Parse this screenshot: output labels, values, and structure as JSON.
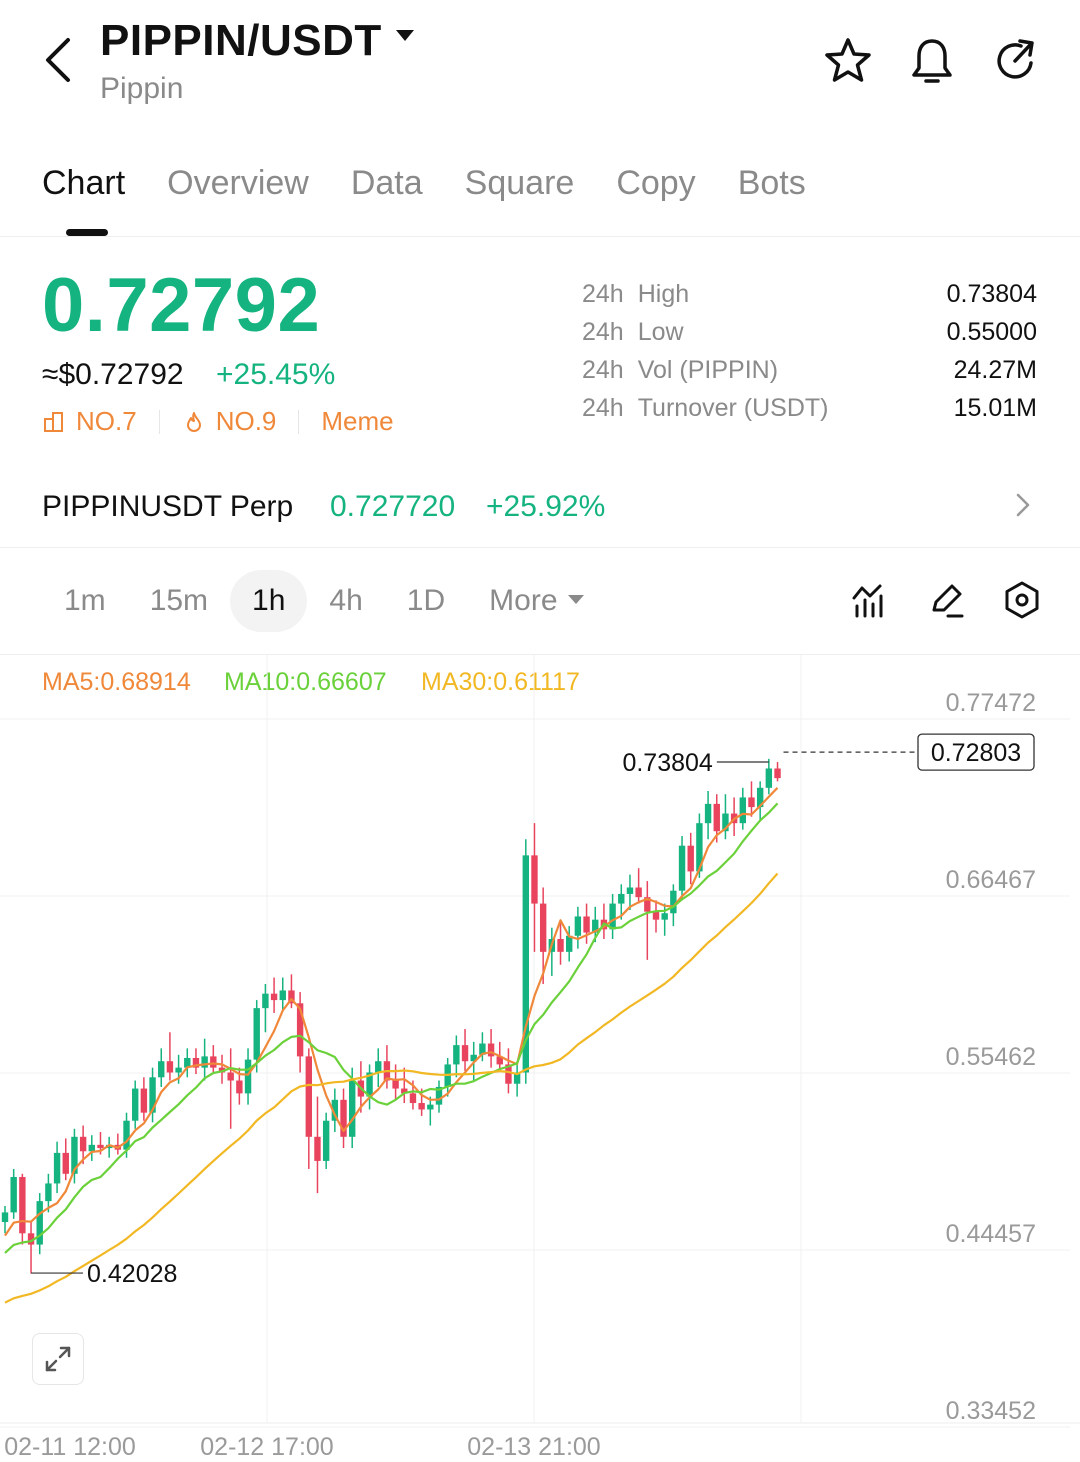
{
  "header": {
    "pair": "PIPPIN/USDT",
    "name": "Pippin"
  },
  "tabs": [
    "Chart",
    "Overview",
    "Data",
    "Square",
    "Copy",
    "Bots"
  ],
  "price": {
    "last": "0.72792",
    "usd": "≈$0.72792",
    "change": "+25.45%",
    "tags": [
      "NO.7",
      "NO.9",
      "Meme"
    ]
  },
  "stats": [
    {
      "label_a": "24h",
      "label_b": "High",
      "value": "0.73804"
    },
    {
      "label_a": "24h",
      "label_b": "Low",
      "value": "0.55000"
    },
    {
      "label_a": "24h",
      "label_b": "Vol (PIPPIN)",
      "value": "24.27M"
    },
    {
      "label_a": "24h",
      "label_b": "Turnover (USDT)",
      "value": "15.01M"
    }
  ],
  "perp": {
    "name": "PIPPINUSDT Perp",
    "price": "0.727720",
    "change": "+25.92%"
  },
  "intervals": [
    "1m",
    "15m",
    "1h",
    "4h",
    "1D",
    "More"
  ],
  "active_interval": "1h",
  "ma": {
    "ma5": "MA5:0.68914",
    "ma10": "MA10:0.66607",
    "ma30": "MA30:0.61117"
  },
  "colors": {
    "up": "#15b37f",
    "down": "#e8445e",
    "ma5": "#f0883a",
    "ma10": "#6ad13a",
    "ma30": "#f2b824",
    "tag": "#f0883a"
  },
  "chart_data": {
    "type": "candlestick",
    "y_ticks": [
      "0.77472",
      "0.66467",
      "0.55462",
      "0.44457",
      "0.33452"
    ],
    "y_tick_values": [
      0.77472,
      0.66467,
      0.55462,
      0.44457,
      0.33452
    ],
    "x_ticks": [
      "02-11 12:00",
      "02-12 17:00",
      "02-13 21:00"
    ],
    "high_label": "0.73804",
    "low_label": "0.42028",
    "last_label": "0.72803",
    "high": 0.73804,
    "low": 0.42028,
    "last": 0.72803,
    "grid": true,
    "candles": [
      [
        0.452,
        0.462,
        0.445,
        0.458
      ],
      [
        0.458,
        0.485,
        0.454,
        0.48
      ],
      [
        0.48,
        0.482,
        0.438,
        0.445
      ],
      [
        0.445,
        0.452,
        0.42,
        0.438
      ],
      [
        0.438,
        0.47,
        0.432,
        0.465
      ],
      [
        0.465,
        0.482,
        0.458,
        0.476
      ],
      [
        0.476,
        0.502,
        0.47,
        0.495
      ],
      [
        0.495,
        0.504,
        0.478,
        0.482
      ],
      [
        0.482,
        0.51,
        0.476,
        0.505
      ],
      [
        0.505,
        0.512,
        0.488,
        0.496
      ],
      [
        0.496,
        0.506,
        0.49,
        0.5
      ],
      [
        0.5,
        0.508,
        0.494,
        0.498
      ],
      [
        0.498,
        0.505,
        0.492,
        0.5
      ],
      [
        0.5,
        0.507,
        0.494,
        0.497
      ],
      [
        0.497,
        0.52,
        0.492,
        0.515
      ],
      [
        0.515,
        0.54,
        0.51,
        0.535
      ],
      [
        0.535,
        0.542,
        0.515,
        0.52
      ],
      [
        0.52,
        0.548,
        0.514,
        0.542
      ],
      [
        0.542,
        0.56,
        0.536,
        0.552
      ],
      [
        0.552,
        0.57,
        0.54,
        0.545
      ],
      [
        0.545,
        0.556,
        0.538,
        0.548
      ],
      [
        0.548,
        0.56,
        0.542,
        0.554
      ],
      [
        0.554,
        0.56,
        0.544,
        0.548
      ],
      [
        0.548,
        0.566,
        0.54,
        0.555
      ],
      [
        0.555,
        0.562,
        0.544,
        0.548
      ],
      [
        0.548,
        0.556,
        0.538,
        0.545
      ],
      [
        0.545,
        0.56,
        0.51,
        0.54
      ],
      [
        0.54,
        0.548,
        0.525,
        0.532
      ],
      [
        0.532,
        0.56,
        0.525,
        0.553
      ],
      [
        0.553,
        0.59,
        0.545,
        0.585
      ],
      [
        0.585,
        0.6,
        0.57,
        0.594
      ],
      [
        0.594,
        0.604,
        0.582,
        0.59
      ],
      [
        0.59,
        0.604,
        0.584,
        0.596
      ],
      [
        0.596,
        0.606,
        0.585,
        0.588
      ],
      [
        0.588,
        0.595,
        0.545,
        0.555
      ],
      [
        0.555,
        0.56,
        0.485,
        0.505
      ],
      [
        0.505,
        0.53,
        0.47,
        0.49
      ],
      [
        0.49,
        0.52,
        0.485,
        0.515
      ],
      [
        0.515,
        0.535,
        0.508,
        0.528
      ],
      [
        0.528,
        0.535,
        0.498,
        0.505
      ],
      [
        0.505,
        0.548,
        0.498,
        0.54
      ],
      [
        0.54,
        0.552,
        0.52,
        0.53
      ],
      [
        0.53,
        0.55,
        0.522,
        0.545
      ],
      [
        0.545,
        0.56,
        0.536,
        0.552
      ],
      [
        0.552,
        0.562,
        0.535,
        0.54
      ],
      [
        0.54,
        0.55,
        0.528,
        0.535
      ],
      [
        0.535,
        0.548,
        0.526,
        0.532
      ],
      [
        0.532,
        0.54,
        0.522,
        0.526
      ],
      [
        0.526,
        0.535,
        0.518,
        0.522
      ],
      [
        0.522,
        0.53,
        0.512,
        0.525
      ],
      [
        0.525,
        0.54,
        0.52,
        0.536
      ],
      [
        0.536,
        0.554,
        0.53,
        0.55
      ],
      [
        0.55,
        0.568,
        0.542,
        0.562
      ],
      [
        0.562,
        0.572,
        0.546,
        0.552
      ],
      [
        0.552,
        0.564,
        0.54,
        0.556
      ],
      [
        0.556,
        0.57,
        0.552,
        0.563
      ],
      [
        0.563,
        0.572,
        0.548,
        0.555
      ],
      [
        0.555,
        0.564,
        0.546,
        0.55
      ],
      [
        0.55,
        0.56,
        0.532,
        0.538
      ],
      [
        0.538,
        0.552,
        0.53,
        0.545
      ],
      [
        0.545,
        0.69,
        0.538,
        0.68
      ],
      [
        0.68,
        0.7,
        0.62,
        0.65
      ],
      [
        0.65,
        0.66,
        0.6,
        0.62
      ],
      [
        0.62,
        0.635,
        0.605,
        0.628
      ],
      [
        0.628,
        0.64,
        0.612,
        0.62
      ],
      [
        0.62,
        0.636,
        0.614,
        0.63
      ],
      [
        0.63,
        0.648,
        0.622,
        0.642
      ],
      [
        0.642,
        0.65,
        0.625,
        0.632
      ],
      [
        0.632,
        0.648,
        0.626,
        0.64
      ],
      [
        0.64,
        0.65,
        0.628,
        0.634
      ],
      [
        0.634,
        0.656,
        0.628,
        0.65
      ],
      [
        0.65,
        0.662,
        0.64,
        0.656
      ],
      [
        0.656,
        0.668,
        0.646,
        0.66
      ],
      [
        0.66,
        0.672,
        0.65,
        0.654
      ],
      [
        0.654,
        0.664,
        0.615,
        0.645
      ],
      [
        0.645,
        0.652,
        0.632,
        0.64
      ],
      [
        0.64,
        0.65,
        0.63,
        0.644
      ],
      [
        0.644,
        0.662,
        0.636,
        0.658
      ],
      [
        0.658,
        0.692,
        0.652,
        0.686
      ],
      [
        0.686,
        0.694,
        0.662,
        0.67
      ],
      [
        0.67,
        0.706,
        0.666,
        0.7
      ],
      [
        0.7,
        0.72,
        0.69,
        0.712
      ],
      [
        0.712,
        0.718,
        0.688,
        0.695
      ],
      [
        0.695,
        0.718,
        0.69,
        0.706
      ],
      [
        0.706,
        0.716,
        0.692,
        0.7
      ],
      [
        0.7,
        0.722,
        0.696,
        0.716
      ],
      [
        0.716,
        0.726,
        0.704,
        0.71
      ],
      [
        0.71,
        0.726,
        0.702,
        0.722
      ],
      [
        0.722,
        0.74,
        0.718,
        0.734
      ],
      [
        0.734,
        0.738,
        0.726,
        0.728
      ]
    ]
  }
}
